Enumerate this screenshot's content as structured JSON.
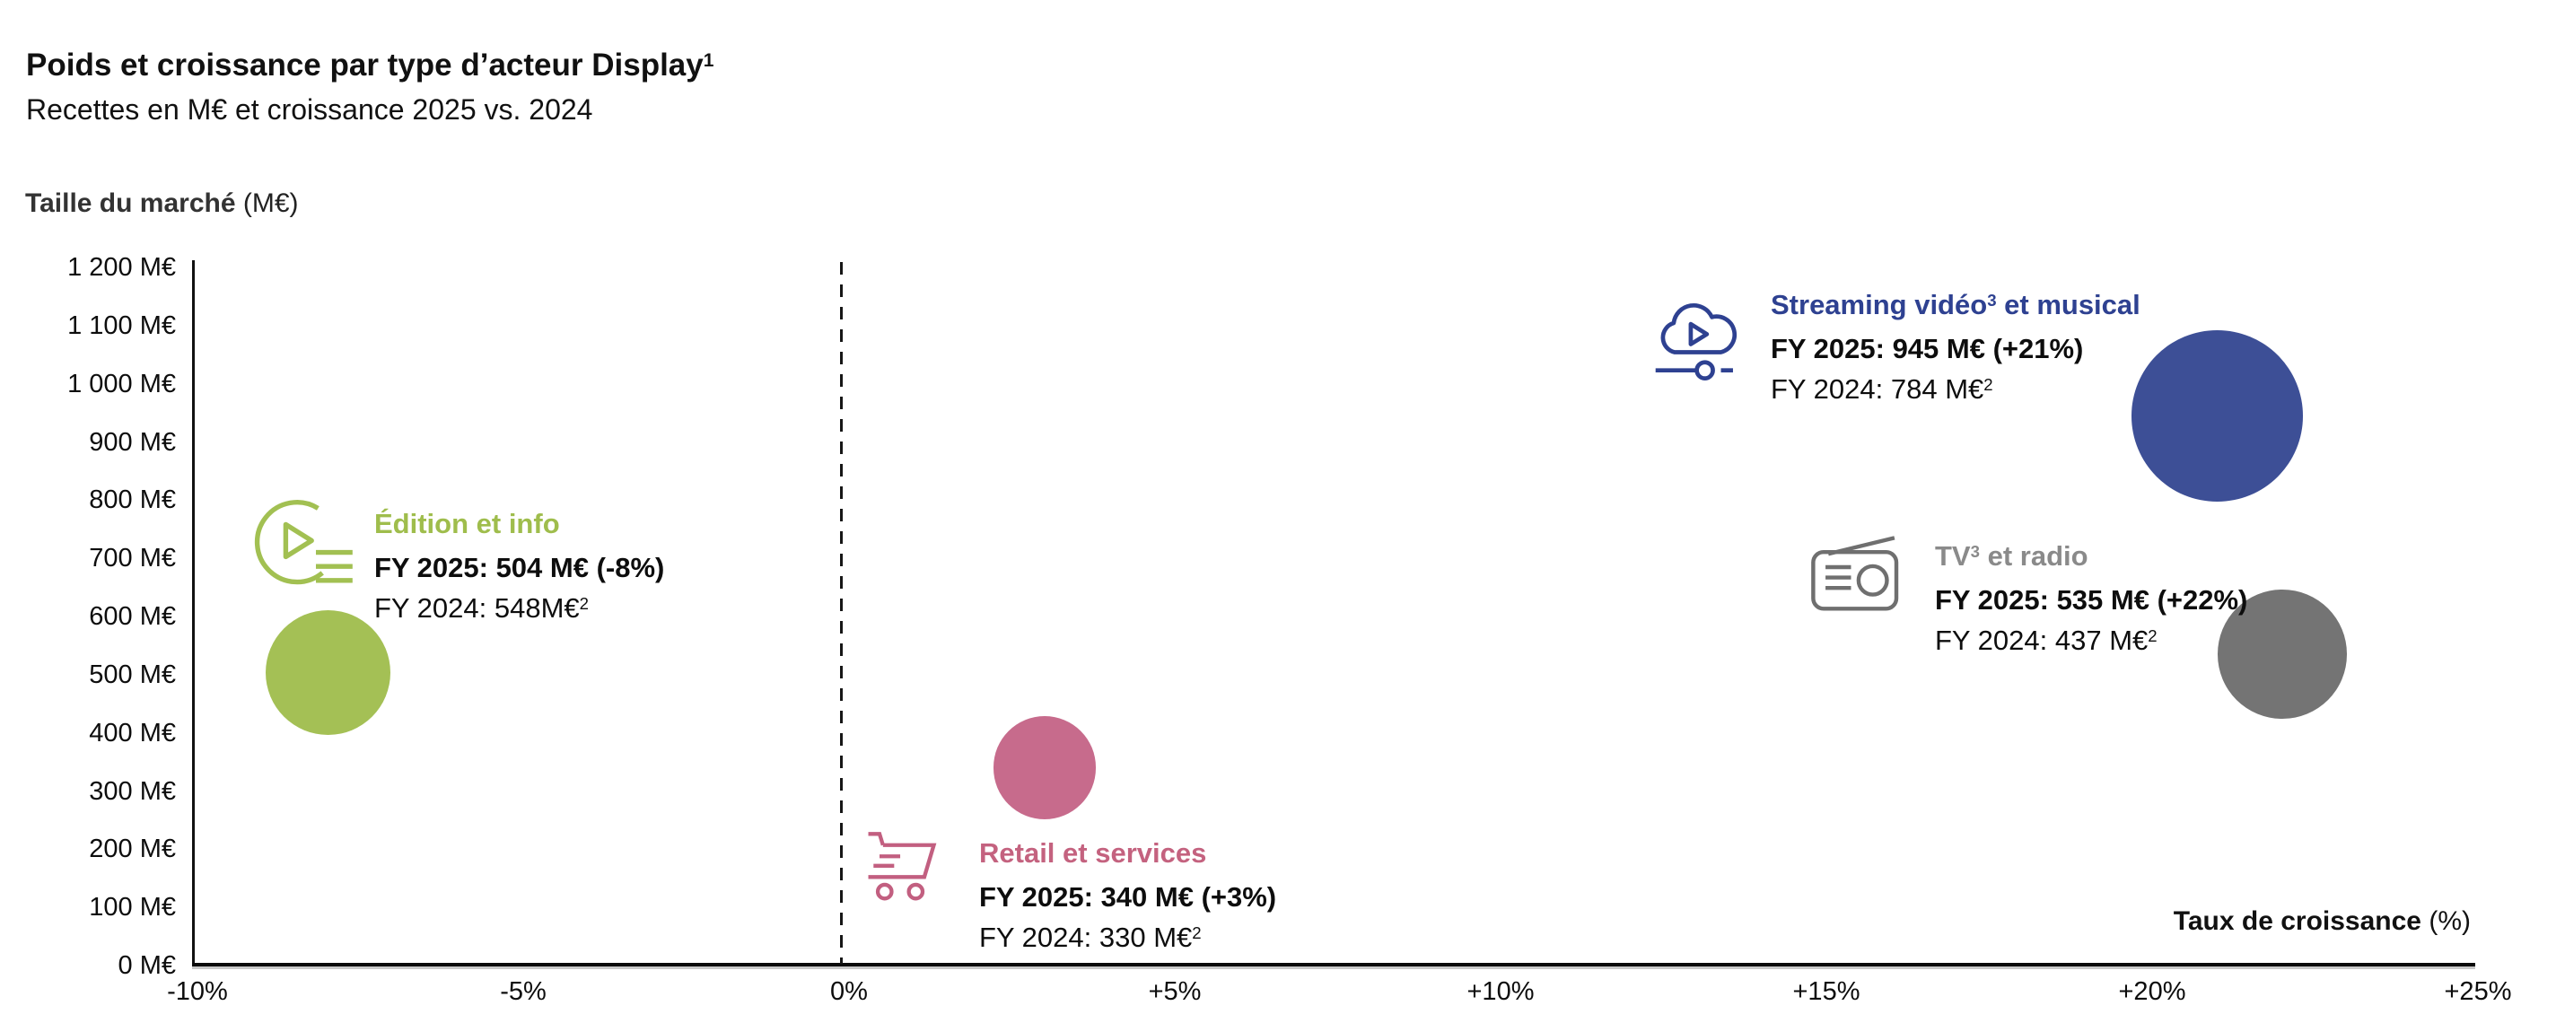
{
  "header": {
    "title": "Poids et croissance par type d’acteur Display",
    "title_sup": "1",
    "subtitle": "Recettes en M€ et croissance 2025 vs. 2024"
  },
  "axes": {
    "y_title": "Taille du marché",
    "y_title_unit": " (M€)",
    "x_title": "Taux de croissance",
    "x_title_unit": " (%)",
    "y_ticks": [
      "1 200 M€",
      "1 100 M€",
      "1 000 M€",
      "900 M€",
      "800 M€",
      "700 M€",
      "600 M€",
      "500 M€",
      "400 M€",
      "300 M€",
      "200 M€",
      "100 M€",
      "0 M€"
    ],
    "x_ticks": [
      "-10%",
      "-5%",
      "0%",
      "+5%",
      "+10%",
      "+15%",
      "+20%",
      "+25%"
    ]
  },
  "chart_data": {
    "type": "scatter",
    "subtype": "bubble",
    "title": "Poids et croissance par type d’acteur Display¹",
    "subtitle": "Recettes en M€ et croissance 2025 vs. 2024",
    "xlabel": "Taux de croissance (%)",
    "ylabel": "Taille du marché (M€)",
    "xlim": [
      -10,
      25
    ],
    "ylim": [
      0,
      1200
    ],
    "x_tick_step": 5,
    "y_tick_step": 100,
    "grid": false,
    "zero_growth_dashed_line_x": 0,
    "bubble_area_basis": "FY 2025 revenue (M€)",
    "points": [
      {
        "label": "Édition et info",
        "growth_pct": -8,
        "fy2025_meur": 504,
        "fy2024_meur": 548,
        "color": "#a4c055"
      },
      {
        "label": "Retail et services",
        "growth_pct": 3,
        "fy2025_meur": 340,
        "fy2024_meur": 330,
        "color": "#c76b8c"
      },
      {
        "label": "Streaming vidéo³ et musical",
        "growth_pct": 21,
        "fy2025_meur": 945,
        "fy2024_meur": 784,
        "color": "#3d4f96"
      },
      {
        "label": "TV³ et radio",
        "growth_pct": 22,
        "fy2025_meur": 535,
        "fy2024_meur": 437,
        "color": "#747474"
      }
    ]
  },
  "bubbles": [
    {
      "name": "Édition et info",
      "name_sup": "",
      "name_rest": "",
      "fy2025": "FY 2025: 504 M€ (-8%)",
      "fy2024": "FY 2024: 548M€",
      "fy2024_sup": "2",
      "title_color": "#9fbd4c",
      "icon_color": "#a2c052"
    },
    {
      "name": "Retail et services",
      "name_sup": "",
      "name_rest": "",
      "fy2025": "FY 2025: 340 M€ (+3%)",
      "fy2024": "FY 2024: 330 M€",
      "fy2024_sup": "2",
      "title_color": "#c4627f",
      "icon_color": "#c25f80"
    },
    {
      "name": "Streaming vidéo",
      "name_sup": "3",
      "name_rest": " et musical",
      "fy2025": "FY 2025: 945 M€ (+21%)",
      "fy2024": "FY 2024: 784 M€",
      "fy2024_sup": "2",
      "title_color": "#2e4191",
      "icon_color": "#2e4191"
    },
    {
      "name": "TV",
      "name_sup": "3",
      "name_rest": " et radio",
      "fy2025": "FY 2025: 535 M€ (+22%)",
      "fy2024": "FY 2024: 437 M€",
      "fy2024_sup": "2",
      "title_color": "#8a8a8a",
      "icon_color": "#6f6f6f"
    }
  ]
}
